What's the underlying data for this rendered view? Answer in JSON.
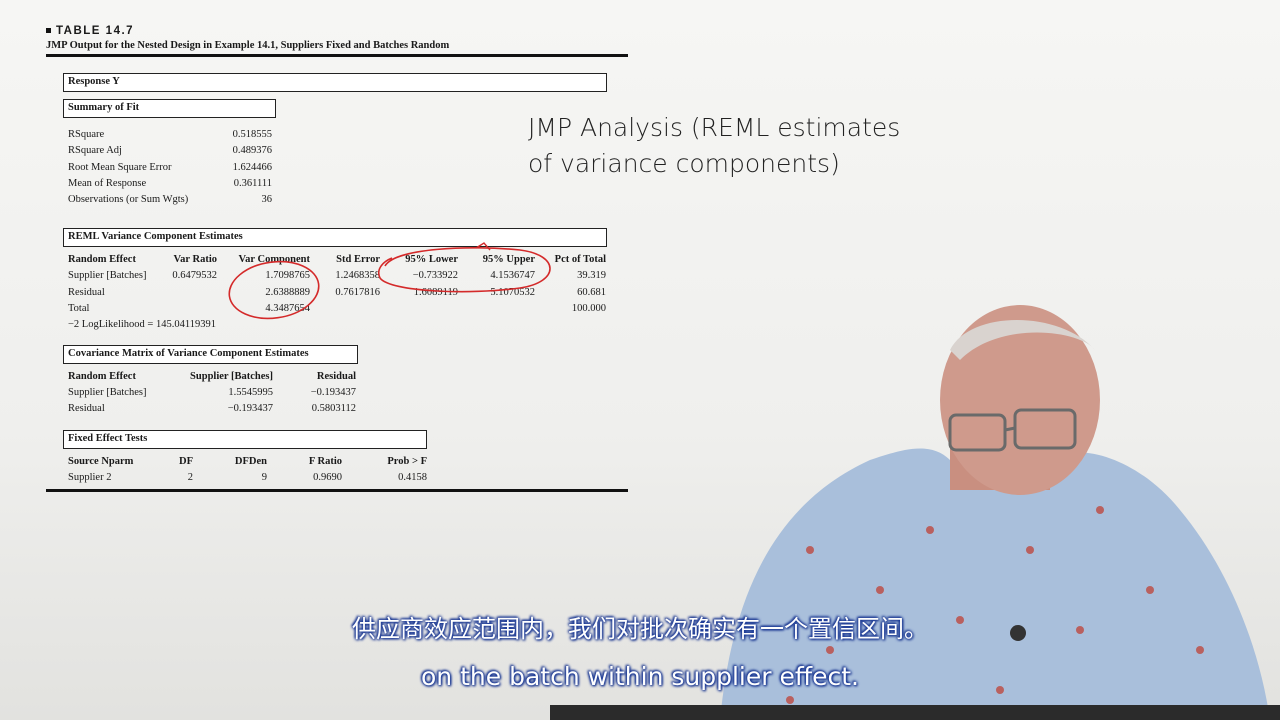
{
  "caption": {
    "label": "TABLE 14.7",
    "subtitle": "JMP Output for the Nested Design in Example 14.1, Suppliers Fixed and Batches Random"
  },
  "response": "Response Y",
  "summary_of_fit": {
    "title": "Summary of Fit",
    "rows": [
      {
        "label": "RSquare",
        "value": "0.518555"
      },
      {
        "label": "RSquare Adj",
        "value": "0.489376"
      },
      {
        "label": "Root Mean Square Error",
        "value": "1.624466"
      },
      {
        "label": "Mean of Response",
        "value": "0.361111"
      },
      {
        "label": "Observations (or Sum Wgts)",
        "value": "36"
      }
    ]
  },
  "reml": {
    "title": "REML Variance Component Estimates",
    "headers": [
      "Random Effect",
      "Var Ratio",
      "Var Component",
      "Std Error",
      "95% Lower",
      "95% Upper",
      "Pct of Total"
    ],
    "rows": [
      [
        "Supplier [Batches]",
        "0.6479532",
        "1.7098765",
        "1.2468358",
        "−0.733922",
        "4.1536747",
        "39.319"
      ],
      [
        "Residual",
        "",
        "2.6388889",
        "0.7617816",
        "1.6089119",
        "5.1070532",
        "60.681"
      ],
      [
        "Total",
        "",
        "4.3487654",
        "",
        "",
        "",
        "100.000"
      ]
    ],
    "loglik": "−2 LogLikelihood = 145.04119391"
  },
  "covariance": {
    "title": "Covariance Matrix of Variance Component Estimates",
    "headers": [
      "Random Effect",
      "Supplier [Batches]",
      "Residual"
    ],
    "rows": [
      [
        "Supplier [Batches]",
        "1.5545995",
        "−0.193437"
      ],
      [
        "Residual",
        "−0.193437",
        "0.5803112"
      ]
    ]
  },
  "fixed_tests": {
    "title": "Fixed Effect Tests",
    "headers": [
      "Source Nparm",
      "DF",
      "DFDen",
      "F Ratio",
      "Prob > F"
    ],
    "row": [
      "Supplier 2",
      "2",
      "9",
      "0.9690",
      "0.4158"
    ]
  },
  "annotation": {
    "line1": "JMP Analysis (REML estimates",
    "line2": "of variance components)"
  },
  "subtitles": {
    "chinese": "供应商效应范围内，我们对批次确实有一个置信区间。",
    "english": "on the batch within supplier effect."
  },
  "colors": {
    "annotation_ink": "#d42a2a",
    "subtitle_outline": "#1a3a9a"
  }
}
